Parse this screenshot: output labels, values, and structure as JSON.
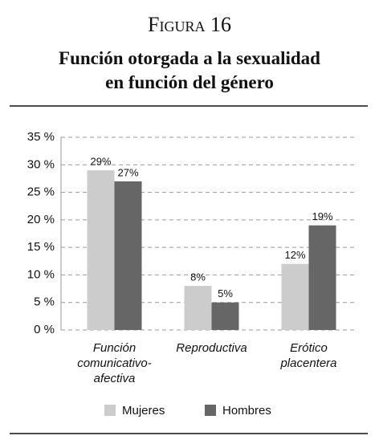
{
  "chart_data": {
    "type": "bar",
    "figure_label": "Figura 16",
    "title": "Función otorgada a la sexualidad\nen función del género",
    "categories": [
      "Función\ncomunicativo-\nafectiva",
      "Reproductiva",
      "Erótico\nplacentera"
    ],
    "series": [
      {
        "name": "Mujeres",
        "color": "#cccccc",
        "values": [
          29,
          8,
          12
        ],
        "value_labels": [
          "29%",
          "8%",
          "12%"
        ]
      },
      {
        "name": "Hombres",
        "color": "#666666",
        "values": [
          27,
          5,
          19
        ],
        "value_labels": [
          "27%",
          "5%",
          "19%"
        ]
      }
    ],
    "ylim": [
      0,
      35
    ],
    "yticks": [
      {
        "value": 0,
        "label": "0 %"
      },
      {
        "value": 5,
        "label": "5 %"
      },
      {
        "value": 10,
        "label": "10 %"
      },
      {
        "value": 15,
        "label": "15 %"
      },
      {
        "value": 20,
        "label": "20 %"
      },
      {
        "value": 25,
        "label": "25 %"
      },
      {
        "value": 30,
        "label": "30 %"
      },
      {
        "value": 35,
        "label": "35 %"
      }
    ],
    "grid": true,
    "legend": "bottom"
  }
}
